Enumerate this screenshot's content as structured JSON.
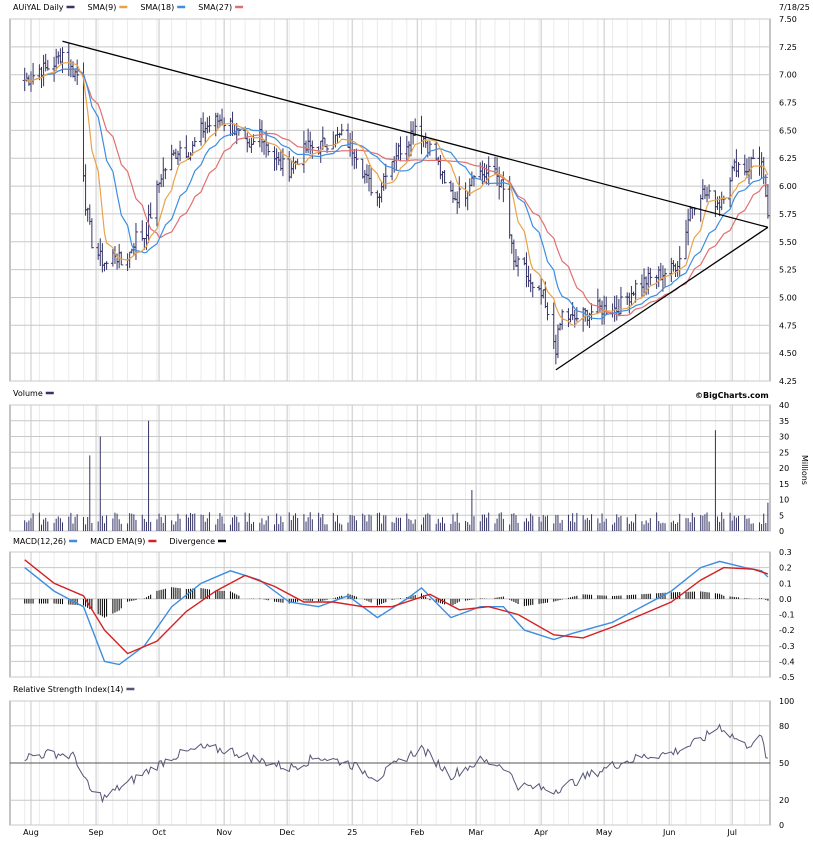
{
  "header": {
    "symbol_label": "AUiYAL Daily",
    "date_label": "7/18/25",
    "watermark": "©BigCharts.com"
  },
  "colors": {
    "price": "#333366",
    "sma9": "#e8a34a",
    "sma18": "#3d8ee0",
    "sma27": "#e07070",
    "macd": "#3d8ee0",
    "signal": "#d42020",
    "divergence": "#000000",
    "rsi": "#555577",
    "grid": "#c8c8c8",
    "trend": "#000000"
  },
  "x_labels": [
    "Aug",
    "Sep",
    "Oct",
    "Nov",
    "Dec",
    "25",
    "Feb",
    "Mar",
    "Apr",
    "May",
    "Jun",
    "Jul"
  ],
  "chart_data": [
    {
      "type": "ohlc",
      "panel": "price",
      "legend": [
        {
          "label": "AUiYAL Daily",
          "color_key": "price"
        },
        {
          "label": "SMA(9)",
          "color_key": "sma9"
        },
        {
          "label": "SMA(18)",
          "color_key": "sma18"
        },
        {
          "label": "SMA(27)",
          "color_key": "sma27"
        }
      ],
      "y_ticks": [
        "7.50",
        "7.25",
        "7.00",
        "6.75",
        "6.50",
        "6.25",
        "6.00",
        "5.75",
        "5.50",
        "5.25",
        "5.00",
        "4.75",
        "4.50",
        "4.25"
      ],
      "ylim": [
        4.25,
        7.5
      ],
      "close_series": [
        [
          "2024-07-29",
          6.95
        ],
        [
          "2024-08-01",
          6.98
        ],
        [
          "2024-08-05",
          7.05
        ],
        [
          "2024-08-08",
          7.05
        ],
        [
          "2024-08-13",
          7.12
        ],
        [
          "2024-08-16",
          7.2
        ],
        [
          "2024-08-20",
          7.05
        ],
        [
          "2024-08-23",
          7.0
        ],
        [
          "2024-08-27",
          5.85
        ],
        [
          "2024-08-30",
          5.5
        ],
        [
          "2024-09-03",
          5.35
        ],
        [
          "2024-09-06",
          5.3
        ],
        [
          "2024-09-10",
          5.4
        ],
        [
          "2024-09-13",
          5.3
        ],
        [
          "2024-09-17",
          5.4
        ],
        [
          "2024-09-20",
          5.55
        ],
        [
          "2024-09-24",
          5.55
        ],
        [
          "2024-09-27",
          5.75
        ],
        [
          "2024-10-02",
          6.1
        ],
        [
          "2024-10-07",
          6.25
        ],
        [
          "2024-10-11",
          6.35
        ],
        [
          "2024-10-16",
          6.3
        ],
        [
          "2024-10-21",
          6.5
        ],
        [
          "2024-10-25",
          6.55
        ],
        [
          "2024-10-30",
          6.6
        ],
        [
          "2024-11-04",
          6.55
        ],
        [
          "2024-11-08",
          6.45
        ],
        [
          "2024-11-13",
          6.3
        ],
        [
          "2024-11-18",
          6.5
        ],
        [
          "2024-11-22",
          6.35
        ],
        [
          "2024-11-27",
          6.2
        ],
        [
          "2024-12-02",
          6.15
        ],
        [
          "2024-12-06",
          6.25
        ],
        [
          "2024-12-11",
          6.35
        ],
        [
          "2024-12-16",
          6.35
        ],
        [
          "2024-12-20",
          6.4
        ],
        [
          "2024-12-27",
          6.45
        ],
        [
          "2025-01-03",
          6.3
        ],
        [
          "2025-01-08",
          6.05
        ],
        [
          "2025-01-13",
          5.9
        ],
        [
          "2025-01-17",
          6.15
        ],
        [
          "2025-01-22",
          6.3
        ],
        [
          "2025-01-27",
          6.4
        ],
        [
          "2025-01-31",
          6.55
        ],
        [
          "2025-02-05",
          6.4
        ],
        [
          "2025-02-10",
          6.25
        ],
        [
          "2025-02-14",
          6.0
        ],
        [
          "2025-02-19",
          5.9
        ],
        [
          "2025-02-24",
          5.95
        ],
        [
          "2025-02-28",
          6.15
        ],
        [
          "2025-03-05",
          6.1
        ],
        [
          "2025-03-10",
          6.15
        ],
        [
          "2025-03-14",
          5.95
        ],
        [
          "2025-03-19",
          5.3
        ],
        [
          "2025-03-24",
          5.25
        ],
        [
          "2025-03-28",
          5.05
        ],
        [
          "2025-04-02",
          5.0
        ],
        [
          "2025-04-04",
          4.8
        ],
        [
          "2025-04-08",
          4.55
        ],
        [
          "2025-04-11",
          4.85
        ],
        [
          "2025-04-16",
          4.8
        ],
        [
          "2025-04-22",
          4.85
        ],
        [
          "2025-04-28",
          4.9
        ],
        [
          "2025-05-02",
          4.9
        ],
        [
          "2025-05-07",
          4.9
        ],
        [
          "2025-05-12",
          5.0
        ],
        [
          "2025-05-16",
          5.1
        ],
        [
          "2025-05-21",
          5.15
        ],
        [
          "2025-05-27",
          5.2
        ],
        [
          "2025-06-02",
          5.25
        ],
        [
          "2025-06-06",
          5.35
        ],
        [
          "2025-06-11",
          5.8
        ],
        [
          "2025-06-16",
          5.95
        ],
        [
          "2025-06-20",
          5.9
        ],
        [
          "2025-06-25",
          5.85
        ],
        [
          "2025-06-30",
          6.1
        ],
        [
          "2025-07-03",
          6.2
        ],
        [
          "2025-07-08",
          6.15
        ],
        [
          "2025-07-11",
          6.25
        ],
        [
          "2025-07-15",
          6.2
        ],
        [
          "2025-07-17",
          5.85
        ],
        [
          "2025-07-18",
          5.75
        ]
      ],
      "trendlines": [
        {
          "from": [
            "2024-08-16",
            7.3
          ],
          "to": [
            "2025-07-18",
            5.63
          ]
        },
        {
          "from": [
            "2025-04-08",
            4.35
          ],
          "to": [
            "2025-07-18",
            5.63
          ]
        }
      ]
    },
    {
      "type": "bar",
      "panel": "volume",
      "legend": [
        {
          "label": "Volume",
          "color_key": "price"
        }
      ],
      "unit_label": "Millions",
      "y_ticks": [
        "40",
        "35",
        "30",
        "25",
        "20",
        "15",
        "10",
        "5",
        "0"
      ],
      "ylim": [
        0,
        40
      ],
      "baseline": 2,
      "spikes": [
        [
          "2024-08-29",
          24
        ],
        [
          "2024-09-03",
          30
        ],
        [
          "2024-09-26",
          35
        ],
        [
          "2025-02-27",
          13
        ],
        [
          "2025-06-23",
          32
        ],
        [
          "2025-07-18",
          9
        ]
      ]
    },
    {
      "type": "line",
      "panel": "macd",
      "legend": [
        {
          "label": "MACD(12,26)",
          "color_key": "macd"
        },
        {
          "label": "MACD EMA(9)",
          "color_key": "signal"
        },
        {
          "label": "Divergence",
          "color_key": "divergence"
        }
      ],
      "y_ticks": [
        "0.3",
        "0.2",
        "0.1",
        "0.0",
        "-0.1",
        "-0.2",
        "-0.3",
        "-0.4",
        "-0.5"
      ],
      "ylim": [
        -0.5,
        0.3
      ],
      "series": [
        {
          "name": "MACD(12,26)",
          "color_key": "macd",
          "points": [
            [
              "2024-07-29",
              0.2
            ],
            [
              "2024-08-12",
              0.05
            ],
            [
              "2024-08-26",
              -0.05
            ],
            [
              "2024-09-05",
              -0.4
            ],
            [
              "2024-09-12",
              -0.42
            ],
            [
              "2024-09-24",
              -0.3
            ],
            [
              "2024-10-07",
              -0.05
            ],
            [
              "2024-10-21",
              0.1
            ],
            [
              "2024-11-04",
              0.18
            ],
            [
              "2024-11-18",
              0.12
            ],
            [
              "2024-12-02",
              -0.02
            ],
            [
              "2024-12-16",
              -0.05
            ],
            [
              "2024-12-30",
              0.02
            ],
            [
              "2025-01-13",
              -0.12
            ],
            [
              "2025-01-27",
              0.0
            ],
            [
              "2025-02-03",
              0.07
            ],
            [
              "2025-02-17",
              -0.12
            ],
            [
              "2025-03-03",
              -0.05
            ],
            [
              "2025-03-14",
              -0.05
            ],
            [
              "2025-03-24",
              -0.2
            ],
            [
              "2025-04-07",
              -0.26
            ],
            [
              "2025-04-16",
              -0.22
            ],
            [
              "2025-05-05",
              -0.15
            ],
            [
              "2025-05-19",
              -0.05
            ],
            [
              "2025-06-02",
              0.05
            ],
            [
              "2025-06-16",
              0.2
            ],
            [
              "2025-06-25",
              0.24
            ],
            [
              "2025-07-07",
              0.2
            ],
            [
              "2025-07-15",
              0.18
            ],
            [
              "2025-07-18",
              0.14
            ]
          ]
        },
        {
          "name": "MACD EMA(9)",
          "color_key": "signal",
          "points": [
            [
              "2024-07-29",
              0.25
            ],
            [
              "2024-08-12",
              0.1
            ],
            [
              "2024-08-26",
              0.02
            ],
            [
              "2024-09-05",
              -0.2
            ],
            [
              "2024-09-16",
              -0.35
            ],
            [
              "2024-09-30",
              -0.27
            ],
            [
              "2024-10-14",
              -0.08
            ],
            [
              "2024-10-28",
              0.05
            ],
            [
              "2024-11-11",
              0.15
            ],
            [
              "2024-11-25",
              0.08
            ],
            [
              "2024-12-09",
              -0.02
            ],
            [
              "2024-12-23",
              -0.02
            ],
            [
              "2025-01-06",
              -0.05
            ],
            [
              "2025-01-20",
              -0.05
            ],
            [
              "2025-02-07",
              0.03
            ],
            [
              "2025-02-21",
              -0.07
            ],
            [
              "2025-03-07",
              -0.05
            ],
            [
              "2025-03-21",
              -0.1
            ],
            [
              "2025-04-07",
              -0.23
            ],
            [
              "2025-04-21",
              -0.25
            ],
            [
              "2025-05-05",
              -0.18
            ],
            [
              "2025-05-19",
              -0.1
            ],
            [
              "2025-06-02",
              -0.02
            ],
            [
              "2025-06-16",
              0.12
            ],
            [
              "2025-06-27",
              0.2
            ],
            [
              "2025-07-11",
              0.19
            ],
            [
              "2025-07-18",
              0.16
            ]
          ]
        }
      ]
    },
    {
      "type": "line",
      "panel": "rsi",
      "legend": [
        {
          "label": "Relative Strength Index(14)",
          "color_key": "rsi"
        }
      ],
      "y_ticks": [
        "100",
        "80",
        "50",
        "20",
        "0"
      ],
      "ylim": [
        0,
        100
      ],
      "reference": 50,
      "series": [
        {
          "name": "Relative Strength Index(14)",
          "color_key": "rsi",
          "points": [
            [
              "2024-07-29",
              55
            ],
            [
              "2024-08-12",
              58
            ],
            [
              "2024-08-22",
              55
            ],
            [
              "2024-08-29",
              28
            ],
            [
              "2024-09-05",
              22
            ],
            [
              "2024-09-12",
              30
            ],
            [
              "2024-09-24",
              42
            ],
            [
              "2024-10-07",
              55
            ],
            [
              "2024-10-21",
              62
            ],
            [
              "2024-11-04",
              60
            ],
            [
              "2024-11-18",
              52
            ],
            [
              "2024-12-02",
              46
            ],
            [
              "2024-12-16",
              55
            ],
            [
              "2024-12-30",
              50
            ],
            [
              "2025-01-13",
              38
            ],
            [
              "2025-01-27",
              55
            ],
            [
              "2025-02-03",
              62
            ],
            [
              "2025-02-17",
              40
            ],
            [
              "2025-03-03",
              52
            ],
            [
              "2025-03-14",
              48
            ],
            [
              "2025-03-21",
              32
            ],
            [
              "2025-04-07",
              28
            ],
            [
              "2025-04-21",
              38
            ],
            [
              "2025-05-05",
              48
            ],
            [
              "2025-05-19",
              55
            ],
            [
              "2025-06-02",
              58
            ],
            [
              "2025-06-16",
              68
            ],
            [
              "2025-06-25",
              80
            ],
            [
              "2025-07-07",
              64
            ],
            [
              "2025-07-15",
              70
            ],
            [
              "2025-07-18",
              50
            ]
          ]
        }
      ]
    }
  ]
}
